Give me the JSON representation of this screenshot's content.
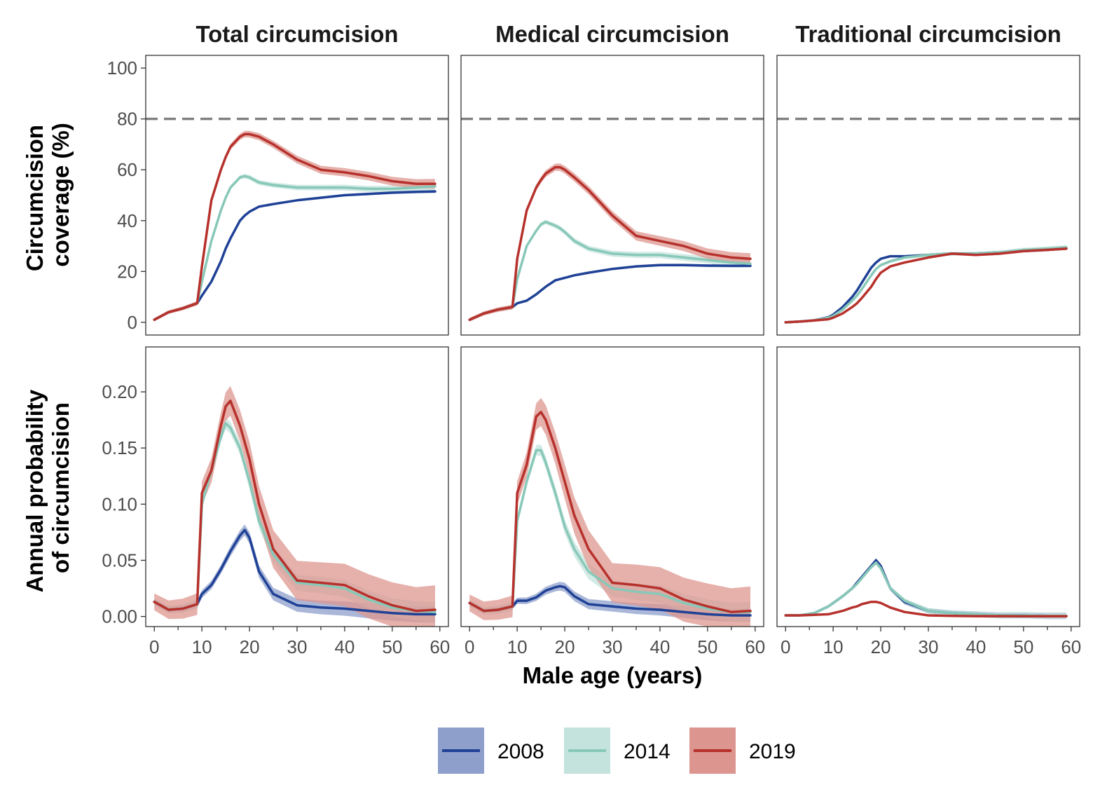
{
  "figure": {
    "facet_titles": [
      "Total circumcision",
      "Medical circumcision",
      "Traditional circumcision"
    ],
    "x_axis_title": "Male age (years)",
    "row_axis_titles": [
      [
        "Circumcision",
        "coverage (%)"
      ],
      [
        "Annual probability",
        "of circumcision"
      ]
    ],
    "legend_title": "",
    "legend_items": [
      {
        "label": "2008",
        "line_color": "#1f4196",
        "band_color": "#8e9fcb"
      },
      {
        "label": "2014",
        "line_color": "#88c8b8",
        "band_color": "#c3e3dc"
      },
      {
        "label": "2019",
        "line_color": "#b7312c",
        "band_color": "#dd958f"
      }
    ],
    "reference_line": {
      "value": 80,
      "row": "coverage",
      "style": "dashed",
      "color": "#808080"
    }
  },
  "chart_data": {
    "type": "line",
    "layout": "facet grid: 2 rows (coverage, annual probability) x 3 columns (total, medical, traditional); shaded bands are uncertainty intervals",
    "x": {
      "label": "Male age (years)",
      "lim": [
        0,
        60
      ],
      "ticks": [
        0,
        10,
        20,
        30,
        40,
        50,
        60
      ],
      "tick_labels": [
        "0",
        "10",
        "20",
        "30",
        "40",
        "50",
        "60"
      ],
      "ages": [
        0,
        3,
        6,
        9,
        10,
        12,
        14,
        15,
        16,
        18,
        19,
        20,
        22,
        25,
        30,
        35,
        40,
        45,
        50,
        55,
        59
      ]
    },
    "rows": [
      {
        "id": "coverage",
        "ylabel": "Circumcision coverage (%)",
        "ylim": [
          -5,
          105
        ],
        "yticks": [
          0,
          20,
          40,
          60,
          80,
          100
        ],
        "ytick_labels": [
          "0",
          "20",
          "40",
          "60",
          "80",
          "100"
        ],
        "reference_line": 80
      },
      {
        "id": "probability",
        "ylabel": "Annual probability of circumcision",
        "ylim": [
          -0.009,
          0.24
        ],
        "yticks": [
          0.0,
          0.05,
          0.1,
          0.15,
          0.2
        ],
        "ytick_labels": [
          "0.00",
          "0.05",
          "0.10",
          "0.15",
          "0.20"
        ],
        "reference_line": null
      }
    ],
    "panels": [
      {
        "row": "coverage",
        "column": "Total circumcision",
        "series": [
          {
            "name": "2008",
            "values": [
              1,
              4,
              5.5,
              7.5,
              10.5,
              16,
              24,
              29,
              33,
              40,
              42,
              43.5,
              45.5,
              46.5,
              48,
              49,
              50,
              50.5,
              51,
              51.3,
              51.5
            ],
            "band": 0.4
          },
          {
            "name": "2014",
            "values": [
              1,
              4,
              5.5,
              7.5,
              16,
              32,
              44,
              49,
              53,
              57,
              57.5,
              57,
              55,
              54,
              53,
              53,
              53,
              52.5,
              52.5,
              53,
              53.5
            ],
            "band": 0.9
          },
          {
            "name": "2019",
            "values": [
              1,
              4,
              5.5,
              7.5,
              22,
              48,
              60,
              65,
              69,
              73,
              74,
              74,
              73,
              70,
              64,
              60,
              59,
              57.5,
              55.5,
              54.5,
              54.5
            ],
            "band": 1.3
          }
        ]
      },
      {
        "row": "coverage",
        "column": "Medical circumcision",
        "series": [
          {
            "name": "2008",
            "values": [
              1,
              3.5,
              5,
              6,
              7.5,
              8.5,
              11,
              12.5,
              14,
              16.5,
              17,
              17.5,
              18.5,
              19.5,
              21,
              22,
              22.5,
              22.5,
              22.3,
              22.2,
              22.2
            ],
            "band": 0.4
          },
          {
            "name": "2014",
            "values": [
              1,
              3.5,
              5,
              6,
              17,
              30,
              36,
              38.5,
              39.5,
              38,
              37,
              35.5,
              32,
              29,
              27,
              26.5,
              26.5,
              25.5,
              24.5,
              23.5,
              23
            ],
            "band": 1.0
          },
          {
            "name": "2019",
            "values": [
              1,
              3.5,
              5,
              6,
              25,
              44,
              53,
              56,
              58.5,
              61,
              61,
              60,
              57,
              52,
              42,
              34,
              32,
              30,
              27,
              25.5,
              25
            ],
            "band": 1.5
          }
        ]
      },
      {
        "row": "coverage",
        "column": "Traditional circumcision",
        "series": [
          {
            "name": "2008",
            "values": [
              0,
              0.3,
              0.8,
              2,
              3,
              6,
              10,
              12.5,
              15.5,
              21.5,
              23.5,
              25,
              26,
              26,
              26.5,
              27,
              27,
              27.5,
              28,
              28.5,
              29
            ],
            "band": 0.3
          },
          {
            "name": "2014",
            "values": [
              0,
              0.3,
              0.8,
              1.8,
              2.5,
              5,
              8.5,
              10.5,
              13,
              18.5,
              21,
              22.5,
              24,
              25.5,
              26.5,
              27,
              27,
              27.5,
              28.5,
              29,
              29.5
            ],
            "band": 0.6
          },
          {
            "name": "2019",
            "values": [
              0,
              0.3,
              0.7,
              1.2,
              1.8,
              3.5,
              6,
              7.5,
              9.5,
              14,
              17,
              19.5,
              22,
              23.5,
              25.5,
              27,
              26.5,
              27,
              28,
              28.5,
              29
            ],
            "band": 0.4
          }
        ]
      },
      {
        "row": "probability",
        "column": "Total circumcision",
        "series": [
          {
            "name": "2008",
            "values": [
              0.013,
              0.006,
              0.007,
              0.011,
              0.02,
              0.028,
              0.042,
              0.05,
              0.058,
              0.072,
              0.077,
              0.07,
              0.04,
              0.02,
              0.01,
              0.008,
              0.007,
              0.005,
              0.003,
              0.002,
              0.002
            ],
            "band": 0.005
          },
          {
            "name": "2014",
            "values": [
              0.013,
              0.006,
              0.007,
              0.011,
              0.1,
              0.13,
              0.16,
              0.172,
              0.168,
              0.15,
              0.135,
              0.12,
              0.085,
              0.055,
              0.03,
              0.028,
              0.025,
              0.015,
              0.008,
              0.005,
              0.004
            ],
            "band": 0.006
          },
          {
            "name": "2019",
            "values": [
              0.013,
              0.006,
              0.007,
              0.011,
              0.11,
              0.13,
              0.17,
              0.187,
              0.192,
              0.17,
              0.155,
              0.14,
              0.1,
              0.06,
              0.032,
              0.03,
              0.028,
              0.018,
              0.01,
              0.005,
              0.006
            ],
            "band": 0.015
          }
        ]
      },
      {
        "row": "probability",
        "column": "Medical circumcision",
        "series": [
          {
            "name": "2008",
            "values": [
              0.012,
              0.005,
              0.006,
              0.009,
              0.014,
              0.014,
              0.017,
              0.02,
              0.023,
              0.026,
              0.027,
              0.026,
              0.018,
              0.011,
              0.009,
              0.007,
              0.006,
              0.004,
              0.002,
              0.001,
              0.001
            ],
            "band": 0.004
          },
          {
            "name": "2014",
            "values": [
              0.012,
              0.005,
              0.006,
              0.009,
              0.085,
              0.12,
              0.148,
              0.148,
              0.137,
              0.11,
              0.095,
              0.08,
              0.06,
              0.04,
              0.025,
              0.022,
              0.02,
              0.012,
              0.007,
              0.004,
              0.004
            ],
            "band": 0.006
          },
          {
            "name": "2019",
            "values": [
              0.012,
              0.005,
              0.006,
              0.009,
              0.11,
              0.135,
              0.178,
              0.182,
              0.175,
              0.15,
              0.135,
              0.12,
              0.09,
              0.06,
              0.03,
              0.028,
              0.025,
              0.015,
              0.009,
              0.004,
              0.005
            ],
            "band": 0.015
          }
        ]
      },
      {
        "row": "probability",
        "column": "Traditional circumcision",
        "series": [
          {
            "name": "2008",
            "values": [
              0.001,
              0.001,
              0.003,
              0.009,
              0.012,
              0.018,
              0.025,
              0.03,
              0.035,
              0.045,
              0.05,
              0.045,
              0.025,
              0.013,
              0.005,
              0.003,
              0.002,
              0.001,
              0.001,
              0.0005,
              0.0005
            ],
            "band": 0.002
          },
          {
            "name": "2014",
            "values": [
              0.001,
              0.001,
              0.003,
              0.009,
              0.012,
              0.018,
              0.025,
              0.029,
              0.034,
              0.044,
              0.048,
              0.043,
              0.025,
              0.014,
              0.005,
              0.003,
              0.002,
              0.001,
              0.001,
              0.0005,
              0.0005
            ],
            "band": 0.002
          },
          {
            "name": "2019",
            "values": [
              0.001,
              0.001,
              0.0015,
              0.002,
              0.003,
              0.005,
              0.008,
              0.009,
              0.011,
              0.013,
              0.013,
              0.012,
              0.008,
              0.004,
              0.001,
              0.0005,
              0.0003,
              0.0003,
              0.0002,
              0.0002,
              0.0002
            ],
            "band": 0.0008
          }
        ]
      }
    ]
  }
}
